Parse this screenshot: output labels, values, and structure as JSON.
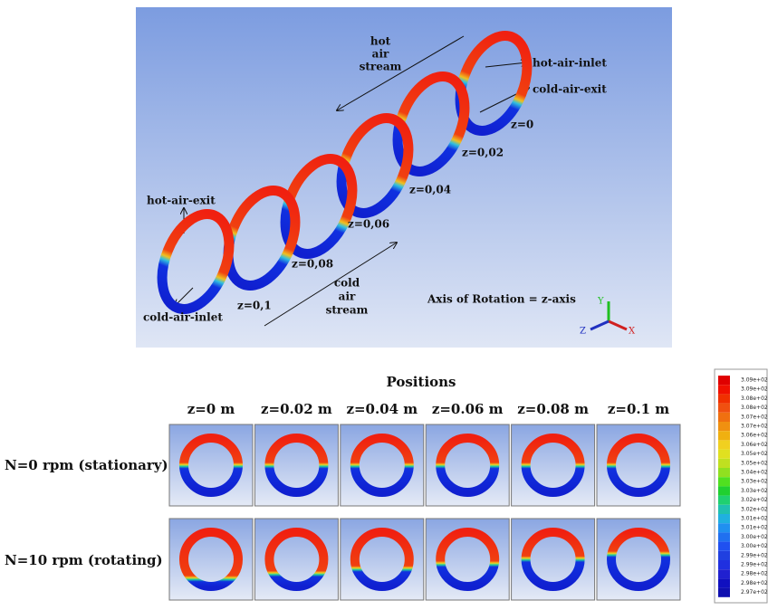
{
  "top_panel": {
    "labels": [
      "hot",
      "air",
      "stream",
      "hot-air-inlet",
      "cold-air-exit",
      "z=0",
      "z=0,02",
      "z=0,04",
      "z=0,06",
      "z=0,08",
      "z=0,1",
      "hot-air-exit",
      "cold-air-inlet",
      "cold",
      "air",
      "stream",
      "Axis of Rotation = z-axis"
    ],
    "axes": [
      "Y",
      "Z",
      "X"
    ]
  },
  "bottom_panel": {
    "title": "Positions",
    "columns": [
      "z=0 m",
      "z=0.02 m",
      "z=0.04 m",
      "z=0.06 m",
      "z=0.08 m",
      "z=0.1 m"
    ],
    "rows": [
      "N=0 rpm (stationary)",
      "N=10 rpm (rotating)"
    ]
  },
  "colorbar": {
    "labels": [
      "3.09e+02",
      "3.09e+02",
      "3.08e+02",
      "3.08e+02",
      "3.07e+02",
      "3.07e+02",
      "3.06e+02",
      "3.06e+02",
      "3.05e+02",
      "3.05e+02",
      "3.04e+02",
      "3.03e+02",
      "3.03e+02",
      "3.02e+02",
      "3.02e+02",
      "3.01e+02",
      "3.01e+02",
      "3.00e+02",
      "3.00e+02",
      "2.99e+02",
      "2.99e+02",
      "2.98e+02",
      "2.98e+02",
      "2.97e+02"
    ]
  }
}
